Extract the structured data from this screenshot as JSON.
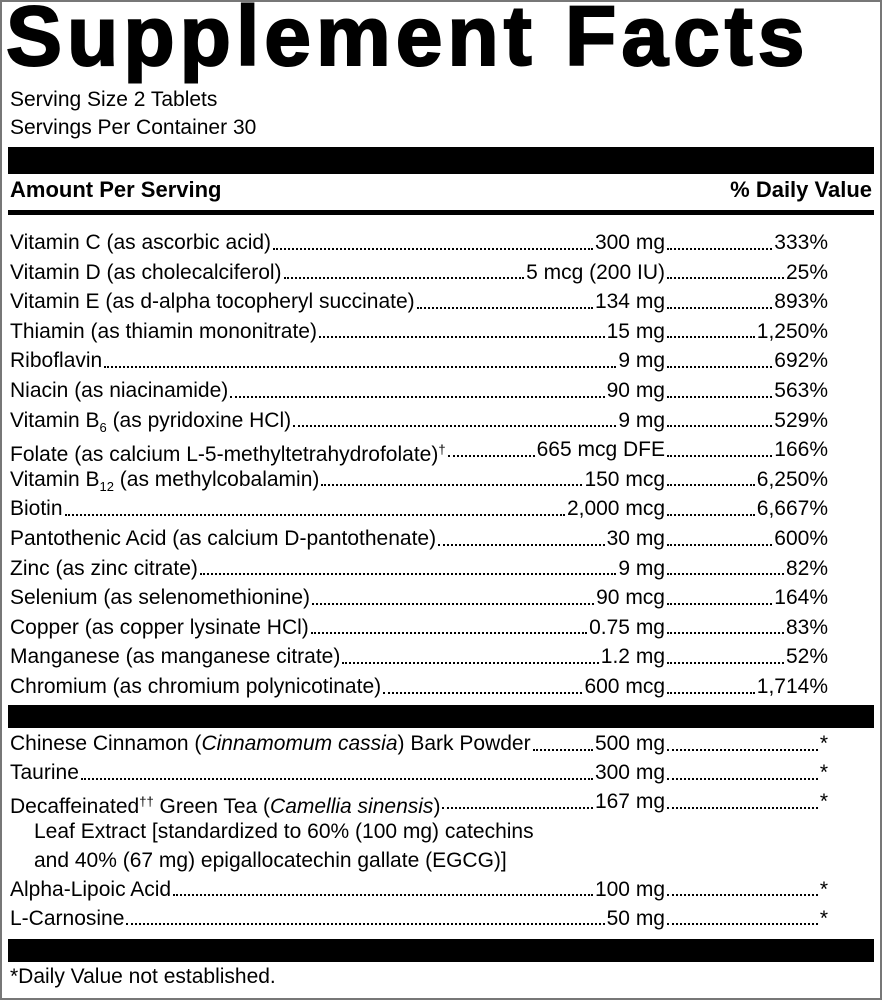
{
  "header": {
    "title": "Supplement Facts",
    "serving_size": "Serving Size 2 Tablets",
    "servings_per_container": "Servings Per Container 30"
  },
  "columns": {
    "amount_per_serving": "Amount Per Serving",
    "daily_value": "% Daily Value"
  },
  "nutrients": [
    {
      "name": [
        {
          "text": "Vitamin C (as ascorbic acid)"
        }
      ],
      "amount": "300 mg",
      "daily_value": "333%"
    },
    {
      "name": [
        {
          "text": "Vitamin D (as cholecalciferol)"
        }
      ],
      "amount": "5 mcg (200 IU)",
      "daily_value": "25%"
    },
    {
      "name": [
        {
          "text": "Vitamin E (as d-alpha tocopheryl succinate)"
        }
      ],
      "amount": "134 mg",
      "daily_value": "893%"
    },
    {
      "name": [
        {
          "text": "Thiamin (as thiamin mononitrate)"
        }
      ],
      "amount": "15 mg",
      "daily_value": "1,250%"
    },
    {
      "name": [
        {
          "text": "Riboflavin"
        }
      ],
      "amount": "9 mg",
      "daily_value": "692%"
    },
    {
      "name": [
        {
          "text": "Niacin (as niacinamide)"
        }
      ],
      "amount": "90 mg",
      "daily_value": "563%"
    },
    {
      "name": [
        {
          "text": "Vitamin B"
        },
        {
          "text": "6",
          "style": "sub"
        },
        {
          "text": " (as pyridoxine HCl)"
        }
      ],
      "amount": "9 mg",
      "daily_value": "529%"
    },
    {
      "name": [
        {
          "text": "Folate (as calcium L-5-methyltetrahydrofolate)"
        },
        {
          "text": "†",
          "style": "sup"
        }
      ],
      "amount": "665 mcg DFE",
      "daily_value": "166%"
    },
    {
      "name": [
        {
          "text": "Vitamin B"
        },
        {
          "text": "12",
          "style": "sub"
        },
        {
          "text": " (as methylcobalamin)"
        }
      ],
      "amount": "150 mcg",
      "daily_value": "6,250%"
    },
    {
      "name": [
        {
          "text": "Biotin"
        }
      ],
      "amount": "2,000 mcg",
      "daily_value": "6,667%"
    },
    {
      "name": [
        {
          "text": "Pantothenic Acid (as calcium D-pantothenate)"
        }
      ],
      "amount": "30 mg",
      "daily_value": "600%"
    },
    {
      "name": [
        {
          "text": "Zinc (as zinc citrate)"
        }
      ],
      "amount": "9 mg",
      "daily_value": "82%"
    },
    {
      "name": [
        {
          "text": "Selenium (as selenomethionine)"
        }
      ],
      "amount": "90 mcg",
      "daily_value": "164%"
    },
    {
      "name": [
        {
          "text": "Copper (as copper lysinate HCl)"
        }
      ],
      "amount": "0.75 mg",
      "daily_value": "83%"
    },
    {
      "name": [
        {
          "text": "Manganese (as manganese citrate)"
        }
      ],
      "amount": "1.2 mg",
      "daily_value": "52%"
    },
    {
      "name": [
        {
          "text": "Chromium (as chromium polynicotinate)"
        }
      ],
      "amount": "600 mcg",
      "daily_value": "1,714%"
    }
  ],
  "other_ingredients": [
    {
      "name": [
        {
          "text": "Chinese Cinnamon ("
        },
        {
          "text": "Cinnamomum cassia",
          "style": "italic"
        },
        {
          "text": ") Bark Powder"
        }
      ],
      "amount": "500 mg",
      "daily_value": "*"
    },
    {
      "name": [
        {
          "text": "Taurine"
        }
      ],
      "amount": "300 mg",
      "daily_value": "*"
    },
    {
      "name": [
        {
          "text": "Decaffeinated"
        },
        {
          "text": "††",
          "style": "sup"
        },
        {
          "text": " Green Tea ("
        },
        {
          "text": "Camellia sinensis",
          "style": "italic"
        },
        {
          "text": ")"
        }
      ],
      "amount": "167 mg",
      "daily_value": "*",
      "continuation": [
        "Leaf Extract [standardized to 60% (100 mg) catechins",
        "and 40% (67 mg) epigallocatechin gallate (EGCG)]"
      ]
    },
    {
      "name": [
        {
          "text": "Alpha-Lipoic Acid"
        }
      ],
      "amount": "100 mg",
      "daily_value": "*"
    },
    {
      "name": [
        {
          "text": "L-Carnosine"
        }
      ],
      "amount": "50 mg",
      "daily_value": "*"
    }
  ],
  "footnote": "*Daily Value not established."
}
